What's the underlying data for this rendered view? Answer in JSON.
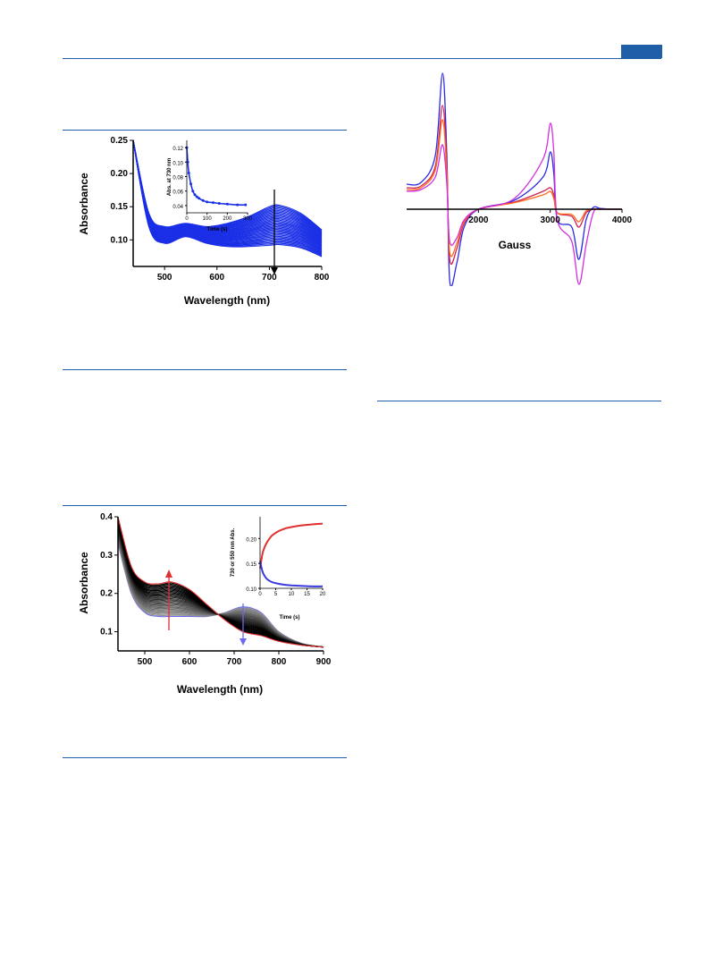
{
  "page": {
    "accent_color": "#1f5fa8",
    "header_tab_icon": "header-tab-block"
  },
  "chart_data": [
    {
      "id": "fig-uv-blue",
      "type": "line",
      "xlabel": "Wavelength  (nm)",
      "ylabel": "Absorbance",
      "xlim": [
        440,
        800
      ],
      "ylim": [
        0.06,
        0.25
      ],
      "xticks": [
        "500",
        "600",
        "700",
        "800"
      ],
      "yticks": [
        "0.10",
        "0.15",
        "0.20",
        "0.25"
      ],
      "series_color": "#1a2fe6",
      "traces": 30,
      "first_trace": {
        "x": [
          440,
          470,
          500,
          540,
          580,
          620,
          660,
          700,
          720,
          760,
          800
        ],
        "y": [
          0.25,
          0.14,
          0.12,
          0.125,
          0.12,
          0.125,
          0.135,
          0.15,
          0.152,
          0.14,
          0.115
        ]
      },
      "last_trace": {
        "x": [
          440,
          470,
          500,
          540,
          580,
          620,
          660,
          700,
          720,
          760,
          800
        ],
        "y": [
          0.25,
          0.12,
          0.095,
          0.105,
          0.095,
          0.09,
          0.09,
          0.092,
          0.093,
          0.088,
          0.075
        ]
      },
      "annotation": "arrow down at 710 nm",
      "inset": {
        "xlabel": "Time  (s)",
        "ylabel": "Abs. at 730 nm",
        "xlim": [
          0,
          300
        ],
        "ylim": [
          0.03,
          0.13
        ],
        "xticks": [
          "0",
          "100",
          "200",
          "300"
        ],
        "yticks": [
          "0.04",
          "0.06",
          "0.08",
          "0.10",
          "0.12"
        ],
        "x": [
          0,
          5,
          10,
          20,
          30,
          40,
          50,
          60,
          80,
          100,
          130,
          160,
          200,
          250,
          290
        ],
        "y": [
          0.12,
          0.1,
          0.085,
          0.07,
          0.06,
          0.055,
          0.052,
          0.05,
          0.047,
          0.045,
          0.044,
          0.043,
          0.042,
          0.041,
          0.041
        ]
      }
    },
    {
      "id": "fig-epr",
      "type": "line",
      "xlabel": "Gauss",
      "ylabel": "",
      "xlim": [
        1000,
        4000
      ],
      "xticks": [
        "2000",
        "3000",
        "4000"
      ],
      "series": [
        {
          "color": "#2a2ae0",
          "x": [
            1000,
            1200,
            1400,
            1500,
            1560,
            1600,
            1700,
            1800,
            2000,
            2500,
            2900,
            3000,
            3050,
            3100,
            3300,
            3400,
            3500,
            3600,
            3700,
            3850,
            4000
          ],
          "y": [
            0.7,
            0.75,
            1.5,
            3.8,
            1.5,
            -2.0,
            -1.5,
            -0.5,
            0.0,
            0.25,
            0.9,
            1.6,
            1.0,
            -0.3,
            -0.5,
            -1.4,
            -0.3,
            0.05,
            0.02,
            0.0,
            0.0
          ]
        },
        {
          "color": "#d02050",
          "x": [
            1000,
            1200,
            1400,
            1500,
            1560,
            1600,
            1700,
            1800,
            2000,
            2500,
            2900,
            3000,
            3050,
            3100,
            3300,
            3400,
            3500,
            3600,
            3700,
            3850,
            4000
          ],
          "y": [
            0.6,
            0.65,
            1.2,
            2.9,
            1.2,
            -1.4,
            -1.1,
            -0.4,
            0.0,
            0.2,
            0.5,
            0.6,
            0.4,
            -0.1,
            -0.2,
            -0.5,
            -0.1,
            0.0,
            0.0,
            0.0,
            0.0
          ]
        },
        {
          "color": "#ff6a1a",
          "x": [
            1000,
            1200,
            1400,
            1500,
            1560,
            1600,
            1700,
            1800,
            2000,
            2500,
            2900,
            3000,
            3050,
            3100,
            3300,
            3400,
            3500,
            3600,
            3700,
            3850,
            4000
          ],
          "y": [
            0.55,
            0.6,
            1.1,
            2.5,
            1.0,
            -1.2,
            -0.95,
            -0.35,
            0.0,
            0.18,
            0.4,
            0.5,
            0.3,
            -0.1,
            -0.15,
            -0.35,
            -0.05,
            0.0,
            0.0,
            0.0,
            0.0
          ]
        },
        {
          "color": "#d030e0",
          "x": [
            1000,
            1200,
            1400,
            1500,
            1560,
            1600,
            1700,
            1800,
            2000,
            2500,
            2900,
            3000,
            3050,
            3100,
            3300,
            3400,
            3500,
            3600,
            3700,
            3850,
            4000
          ],
          "y": [
            0.5,
            0.55,
            0.9,
            1.8,
            0.7,
            -0.9,
            -0.8,
            -0.3,
            0.0,
            0.3,
            1.4,
            2.4,
            1.6,
            -0.3,
            -0.9,
            -2.1,
            -1.0,
            -0.1,
            0.0,
            0.0,
            0.0
          ]
        }
      ]
    },
    {
      "id": "fig-uv-black",
      "type": "line",
      "xlabel": "Wavelength  (nm)",
      "ylabel": "Absorbance",
      "xlim": [
        440,
        900
      ],
      "ylim": [
        0.05,
        0.4
      ],
      "xticks": [
        "500",
        "600",
        "700",
        "800",
        "900"
      ],
      "yticks": [
        "0.1",
        "0.2",
        "0.3",
        "0.4"
      ],
      "traces": 30,
      "start_color": "#6a6af0",
      "end_color": "#e03030",
      "start_trace": {
        "x": [
          440,
          470,
          500,
          530,
          560,
          600,
          640,
          680,
          720,
          760,
          800,
          850,
          900
        ],
        "y": [
          0.33,
          0.2,
          0.15,
          0.14,
          0.14,
          0.14,
          0.14,
          0.15,
          0.165,
          0.15,
          0.1,
          0.07,
          0.06
        ]
      },
      "end_trace": {
        "x": [
          440,
          470,
          500,
          530,
          560,
          600,
          640,
          680,
          720,
          760,
          800,
          850,
          900
        ],
        "y": [
          0.4,
          0.27,
          0.23,
          0.225,
          0.23,
          0.21,
          0.17,
          0.13,
          0.1,
          0.09,
          0.075,
          0.065,
          0.06
        ]
      },
      "annotations": [
        "red arrow up at 555 nm",
        "blue arrow down at 725 nm"
      ],
      "inset": {
        "xlabel": "Time  (s)",
        "ylabel": "730 or 550 nm Abs.",
        "xlim": [
          0,
          20
        ],
        "ylim": [
          0.1,
          0.24
        ],
        "xticks": [
          "0",
          "5",
          "10",
          "15",
          "20"
        ],
        "yticks": [
          "0.10",
          "0.15",
          "0.20"
        ],
        "series": [
          {
            "color": "#e03030",
            "x": [
              0,
              0.5,
              1,
              2,
              3,
              4,
              6,
              8,
              10,
              13,
              16,
              20
            ],
            "y": [
              0.14,
              0.16,
              0.175,
              0.19,
              0.2,
              0.207,
              0.215,
              0.22,
              0.223,
              0.226,
              0.228,
              0.23
            ]
          },
          {
            "color": "#3a3ae0",
            "x": [
              0,
              0.5,
              1,
              2,
              3,
              4,
              6,
              8,
              10,
              13,
              16,
              20
            ],
            "y": [
              0.155,
              0.14,
              0.13,
              0.12,
              0.115,
              0.112,
              0.109,
              0.107,
              0.106,
              0.105,
              0.104,
              0.104
            ]
          }
        ]
      }
    }
  ]
}
